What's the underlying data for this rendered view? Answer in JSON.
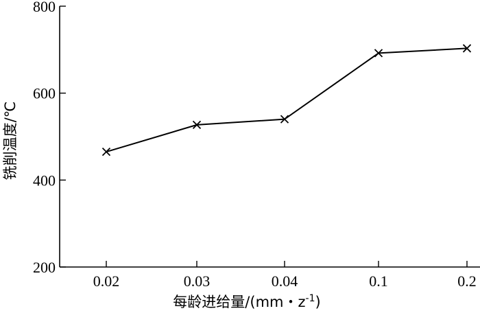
{
  "chart_data": {
    "type": "line",
    "title": "",
    "xlabel": "每龄进给量/(mm・z",
    "xlabel_sup": "-1",
    "xlabel_close": ")",
    "ylabel": "铣削温度/℃",
    "categories": [
      "0.02",
      "0.03",
      "0.04",
      "0.1",
      "0.2"
    ],
    "series": [
      {
        "values": [
          465,
          527,
          540,
          692,
          703
        ],
        "marker": "x"
      }
    ],
    "ylim": [
      200,
      800
    ],
    "yticks": [
      200,
      400,
      600,
      800
    ],
    "grid": false,
    "legend": "none"
  }
}
